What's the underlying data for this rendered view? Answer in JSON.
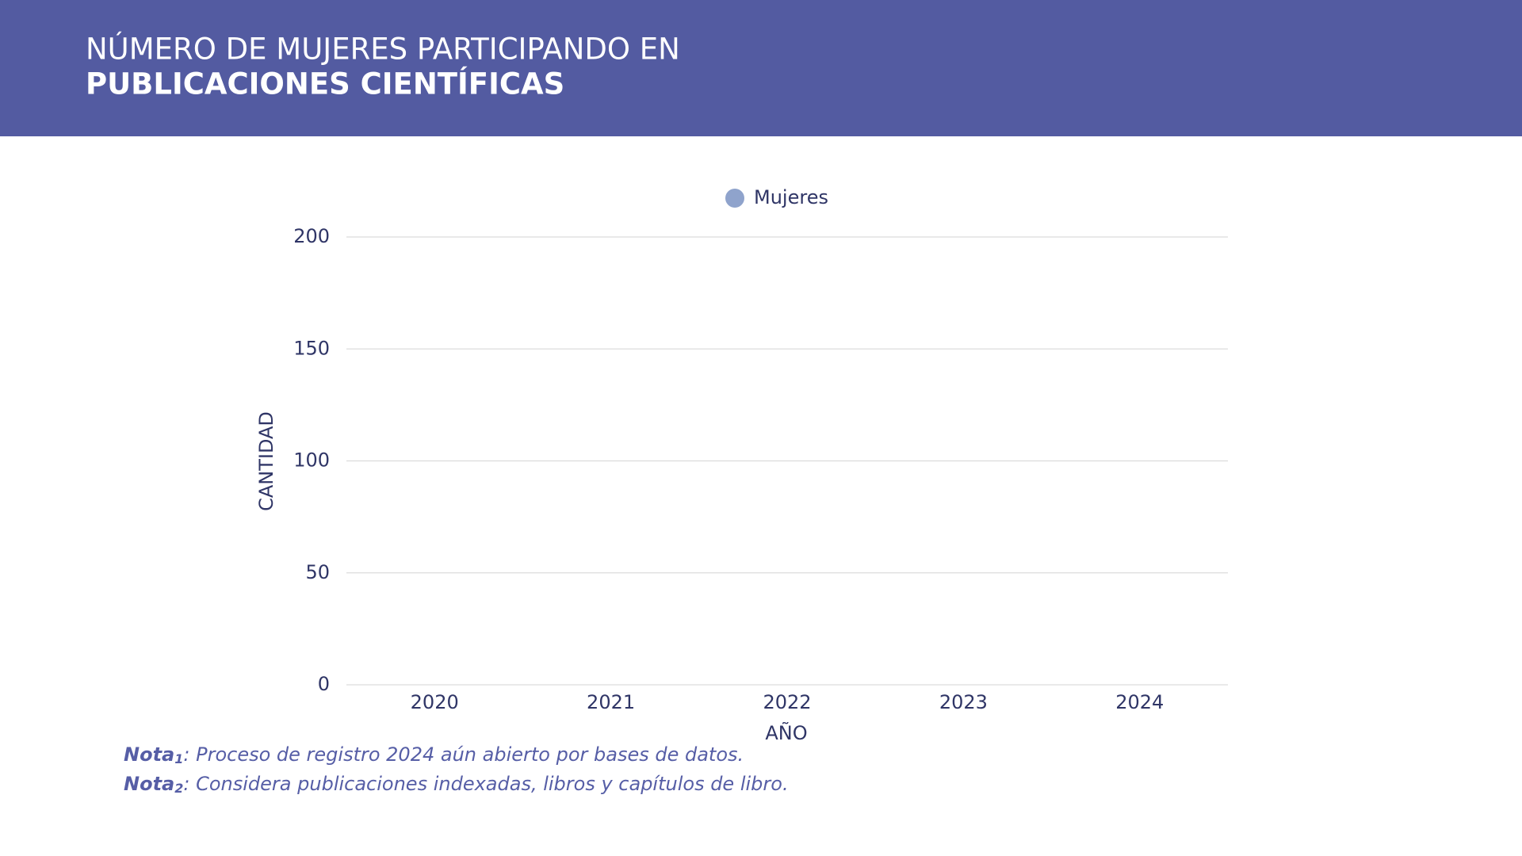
{
  "chart_data": {
    "type": "bar",
    "title": [
      "NÚMERO DE MUJERES PARTICIPANDO EN",
      "PUBLICACIONES CIENTÍFICAS"
    ],
    "xlabel": "AÑO",
    "ylabel": "CANTIDAD",
    "categories": [
      "2020",
      "2021",
      "2022",
      "2023",
      "2024"
    ],
    "series": [
      {
        "name": "Mujeres",
        "color": "#8fa3cc",
        "values": [
          null,
          null,
          null,
          null,
          null
        ]
      }
    ],
    "ylim": [
      0,
      200
    ],
    "yticks": [
      0,
      50,
      100,
      150,
      200
    ],
    "grid": true,
    "legend": "top",
    "notes": [
      {
        "label": "Nota",
        "sub": "1",
        "text": ": Proceso de registro 2024 aún abierto por bases de datos."
      },
      {
        "label": "Nota",
        "sub": "2",
        "text": ": Considera publicaciones indexadas, libros y capítulos de libro."
      }
    ]
  }
}
